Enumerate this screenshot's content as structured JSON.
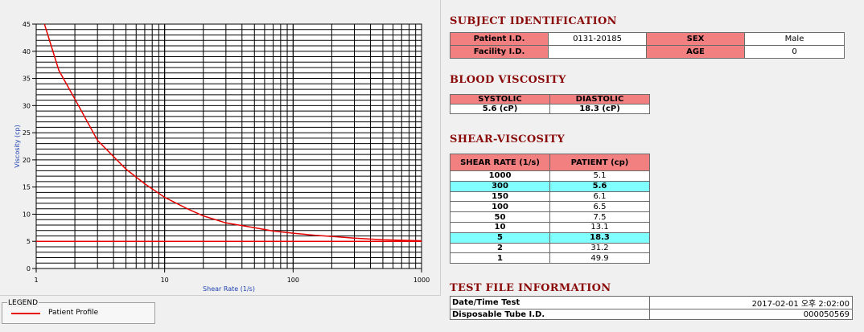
{
  "chart_data": {
    "type": "line",
    "xscale": "log",
    "xlim": [
      1,
      1000
    ],
    "ylim": [
      0,
      45
    ],
    "xlabel": "Shear Rate (1/s)",
    "ylabel": "Viscosity (cp)",
    "x_ticks": [
      "1",
      "10",
      "100",
      "1000"
    ],
    "y_ticks": [
      "0",
      "5",
      "10",
      "15",
      "20",
      "25",
      "30",
      "35",
      "40",
      "45"
    ],
    "grid": true,
    "series": [
      {
        "name": "Patient Profile",
        "color": "#e60000",
        "x": [
          1,
          1.5,
          2,
          3,
          5,
          7,
          10,
          15,
          20,
          30,
          50,
          70,
          100,
          150,
          200,
          300,
          500,
          700,
          1000
        ],
        "y": [
          49.9,
          36.5,
          31.2,
          23.6,
          18.3,
          15.6,
          13.1,
          11.0,
          9.7,
          8.4,
          7.5,
          6.9,
          6.5,
          6.1,
          5.9,
          5.6,
          5.3,
          5.2,
          5.1
        ]
      },
      {
        "name": "",
        "color": "#e60000",
        "x": [
          1,
          1000
        ],
        "y": [
          5,
          5
        ]
      }
    ]
  },
  "legend": {
    "title": "LEGEND",
    "label": "Patient Profile"
  },
  "subject": {
    "heading": "SUBJECT IDENTIFICATION",
    "patient_id_label": "Patient I.D.",
    "patient_id": "0131-20185",
    "sex_label": "SEX",
    "sex": "Male",
    "facility_id_label": "Facility I.D.",
    "facility_id": "",
    "age_label": "AGE",
    "age": "0"
  },
  "blood_viscosity": {
    "heading": "BLOOD VISCOSITY",
    "systolic_label": "SYSTOLIC",
    "diastolic_label": "DIASTOLIC",
    "systolic": "5.6 (cP)",
    "diastolic": "18.3 (cP)"
  },
  "shear_viscosity": {
    "heading": "SHEAR-VISCOSITY",
    "col_rate": "SHEAR RATE (1/s)",
    "col_patient": "PATIENT (cp)",
    "rows": [
      {
        "rate": "1000",
        "patient": "5.1"
      },
      {
        "rate": "300",
        "patient": "5.6"
      },
      {
        "rate": "150",
        "patient": "6.1"
      },
      {
        "rate": "100",
        "patient": "6.5"
      },
      {
        "rate": "50",
        "patient": "7.5"
      },
      {
        "rate": "10",
        "patient": "13.1"
      },
      {
        "rate": "5",
        "patient": "18.3"
      },
      {
        "rate": "2",
        "patient": "31.2"
      },
      {
        "rate": "1",
        "patient": "49.9"
      }
    ]
  },
  "test_file": {
    "heading": "TEST FILE INFORMATION",
    "datetime_label": "Date/Time Test",
    "datetime": "2017-02-01   오후 2:02:00",
    "tube_label": "Disposable Tube I.D.",
    "tube": "000050569"
  }
}
